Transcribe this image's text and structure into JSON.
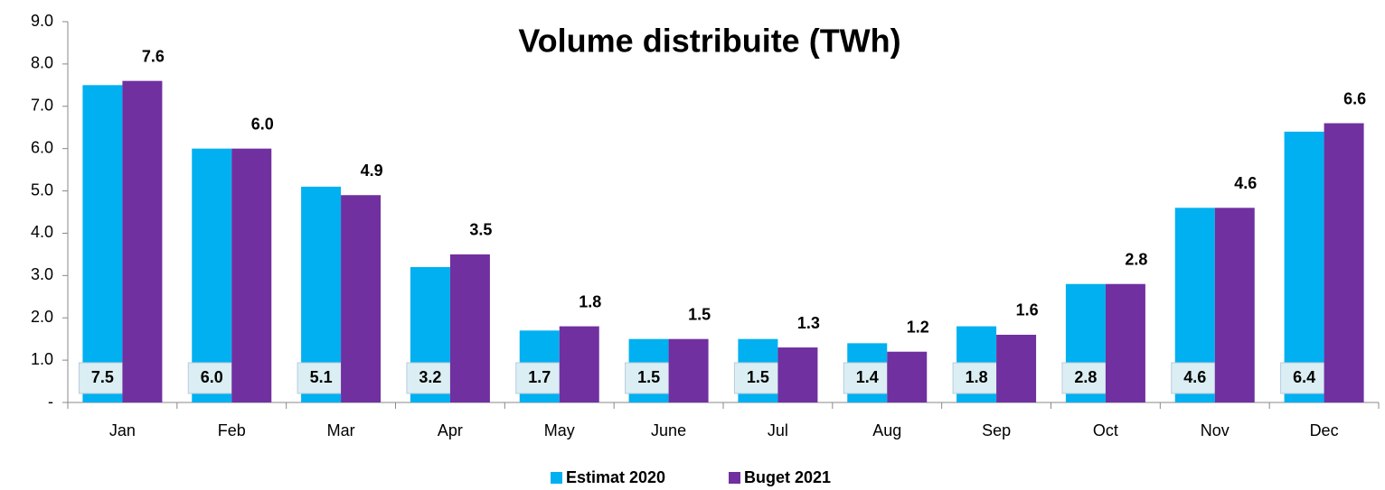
{
  "chart_data": {
    "type": "bar",
    "title": "Volume distribuite (TWh)",
    "categories": [
      "Jan",
      "Feb",
      "Mar",
      "Apr",
      "May",
      "June",
      "Jul",
      "Aug",
      "Sep",
      "Oct",
      "Nov",
      "Dec"
    ],
    "series": [
      {
        "name": "Estimat 2020",
        "color": "#00b0f0",
        "label_position": "inside-base",
        "values": [
          7.5,
          6.0,
          5.1,
          3.2,
          1.7,
          1.5,
          1.5,
          1.4,
          1.8,
          2.8,
          4.6,
          6.4
        ],
        "value_labels": [
          "7.5",
          "6.0",
          "5.1",
          "3.2",
          "1.7",
          "1.5",
          "1.5",
          "1.4",
          "1.8",
          "2.8",
          "4.6",
          "6.4"
        ]
      },
      {
        "name": "Buget 2021",
        "color": "#7030a0",
        "label_position": "above",
        "values": [
          7.6,
          6.0,
          4.9,
          3.5,
          1.8,
          1.5,
          1.3,
          1.2,
          1.6,
          2.8,
          4.6,
          6.6
        ],
        "value_labels": [
          "7.6",
          "6.0",
          "4.9",
          "3.5",
          "1.8",
          "1.5",
          "1.3",
          "1.2",
          "1.6",
          "2.8",
          "4.6",
          "6.6"
        ]
      }
    ],
    "ylim": [
      0,
      9
    ],
    "yticks": [
      {
        "value": 0,
        "label": "-"
      },
      {
        "value": 1,
        "label": "1.0"
      },
      {
        "value": 2,
        "label": "2.0"
      },
      {
        "value": 3,
        "label": "3.0"
      },
      {
        "value": 4,
        "label": "4.0"
      },
      {
        "value": 5,
        "label": "5.0"
      },
      {
        "value": 6,
        "label": "6.0"
      },
      {
        "value": 7,
        "label": "7.0"
      },
      {
        "value": 8,
        "label": "8.0"
      },
      {
        "value": 9,
        "label": "9.0"
      }
    ],
    "grid": false,
    "legend": "bottom"
  }
}
